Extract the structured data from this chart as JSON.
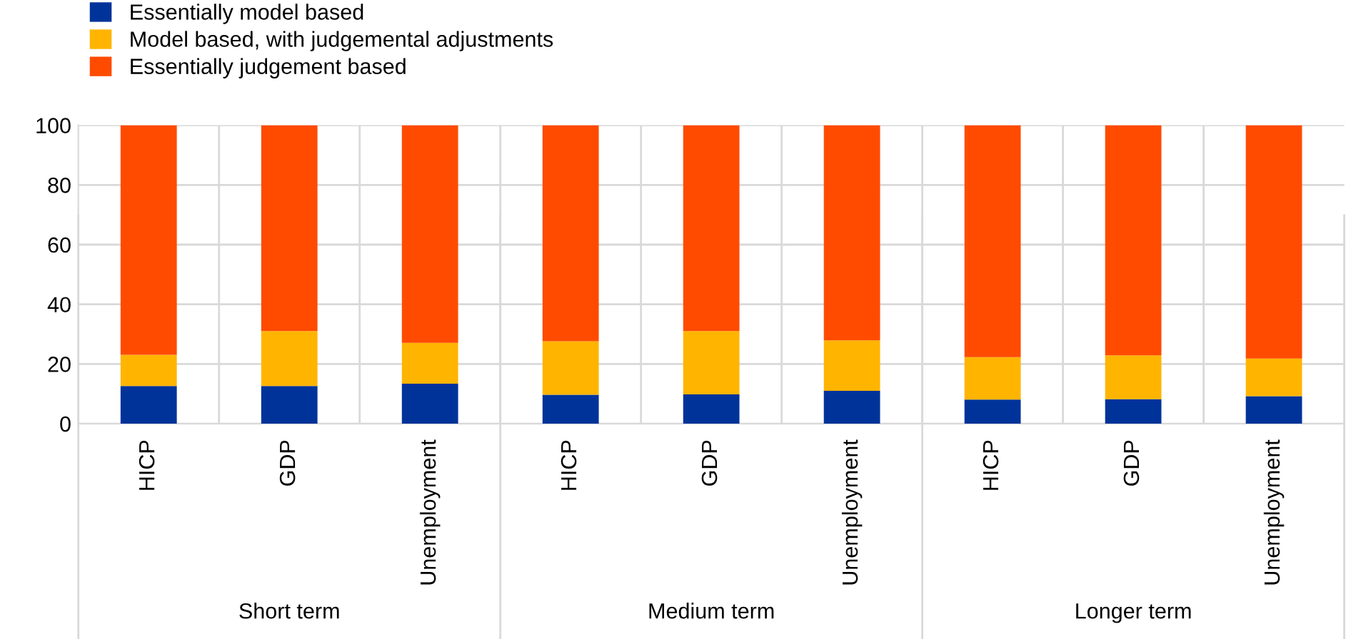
{
  "chart_data": {
    "type": "bar",
    "stacked": true,
    "categories": [
      "HICP",
      "GDP",
      "Unemployment",
      "HICP",
      "GDP",
      "Unemployment",
      "HICP",
      "GDP",
      "Unemployment"
    ],
    "annotations": [
      "Short term",
      "Medium term",
      "Longer term"
    ],
    "series": [
      {
        "name": "Essentially model based",
        "color": "#003399",
        "values": [
          12.6,
          12.6,
          13.4,
          9.7,
          9.8,
          11.0,
          8.1,
          8.2,
          9.2
        ]
      },
      {
        "name": "Model based, with judgemental adjustments",
        "color": "#ffb400",
        "values": [
          10.5,
          18.4,
          13.7,
          17.9,
          21.2,
          16.9,
          14.2,
          14.7,
          12.6
        ]
      },
      {
        "name": "Essentially judgement based",
        "color": "#ff4b00",
        "values": [
          76.9,
          69.0,
          72.9,
          72.4,
          69.0,
          72.1,
          77.7,
          77.1,
          78.2
        ]
      }
    ],
    "ylim": [
      0,
      100
    ],
    "yticks": [
      0,
      20,
      40,
      60,
      80,
      100
    ],
    "grid": true,
    "legend": "top left"
  }
}
